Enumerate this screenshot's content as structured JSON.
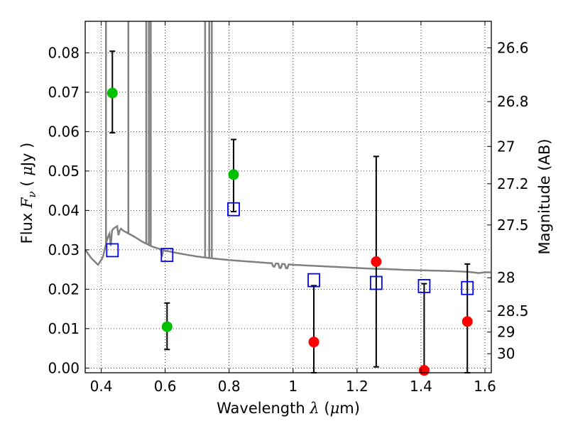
{
  "chart_data": {
    "type": "scatter",
    "xlabel_text": "Wavelength",
    "xlabel_symbol": "λ",
    "xlabel_unit_open": "(",
    "xlabel_unit_mu": "μ",
    "xlabel_unit_rest": "m)",
    "ylabel_text": "Flux",
    "ylabel_symbol": "F",
    "ylabel_sub": "ν",
    "ylabel_unit_open": "(",
    "ylabel_unit_mu": "μ",
    "ylabel_unit_rest": "Jy )",
    "y2label": "Magnitude (AB)",
    "xlim": [
      0.35,
      1.62
    ],
    "ylim": [
      -0.0012,
      0.088
    ],
    "grid": true,
    "x_ticks": [
      {
        "value": 0.4,
        "label": "0.4"
      },
      {
        "value": 0.6,
        "label": "0.6"
      },
      {
        "value": 0.8,
        "label": "0.8"
      },
      {
        "value": 1.0,
        "label": "1"
      },
      {
        "value": 1.2,
        "label": "1.2"
      },
      {
        "value": 1.4,
        "label": "1.4"
      },
      {
        "value": 1.6,
        "label": "1.6"
      }
    ],
    "y_ticks": [
      {
        "value": 0.0,
        "label": "0.00"
      },
      {
        "value": 0.01,
        "label": "0.01"
      },
      {
        "value": 0.02,
        "label": "0.02"
      },
      {
        "value": 0.03,
        "label": "0.03"
      },
      {
        "value": 0.04,
        "label": "0.04"
      },
      {
        "value": 0.05,
        "label": "0.05"
      },
      {
        "value": 0.06,
        "label": "0.06"
      },
      {
        "value": 0.07,
        "label": "0.07"
      },
      {
        "value": 0.08,
        "label": "0.08"
      }
    ],
    "mag_ticks": [
      {
        "flux": 0.08128,
        "label": "26.6"
      },
      {
        "flux": 0.06761,
        "label": "26.8"
      },
      {
        "flux": 0.05623,
        "label": "27"
      },
      {
        "flux": 0.04677,
        "label": "27.2"
      },
      {
        "flux": 0.03631,
        "label": "27.5"
      },
      {
        "flux": 0.02291,
        "label": "28"
      },
      {
        "flux": 0.01445,
        "label": "28.5"
      },
      {
        "flux": 0.00912,
        "label": "29"
      },
      {
        "flux": 0.00363,
        "label": "30"
      }
    ],
    "series": [
      {
        "name": "green detections",
        "marker": "circle",
        "color": "#00c000",
        "points": [
          {
            "x": 0.435,
            "y": 0.0698,
            "yerr_low": 0.0597,
            "yerr_high": 0.0804
          },
          {
            "x": 0.606,
            "y": 0.0105,
            "yerr_low": 0.0047,
            "yerr_high": 0.0165
          },
          {
            "x": 0.814,
            "y": 0.0491,
            "yerr_low": 0.0397,
            "yerr_high": 0.058
          }
        ]
      },
      {
        "name": "red points",
        "marker": "circle",
        "color": "#ff0000",
        "points": [
          {
            "x": 1.065,
            "y": 0.0066,
            "yerr_low": -0.0012,
            "yerr_high": 0.0209
          },
          {
            "x": 1.26,
            "y": 0.027,
            "yerr_low": 0.0003,
            "yerr_high": 0.0537
          },
          {
            "x": 1.41,
            "y": -0.0006,
            "yerr_low": -0.0012,
            "yerr_high": 0.0214
          },
          {
            "x": 1.545,
            "y": 0.0118,
            "yerr_low": -0.0012,
            "yerr_high": 0.0264
          }
        ]
      },
      {
        "name": "model photometry",
        "marker": "open-square",
        "color": "#0000ff",
        "points": [
          {
            "x": 0.435,
            "y": 0.0299
          },
          {
            "x": 0.606,
            "y": 0.0287
          },
          {
            "x": 0.814,
            "y": 0.0403
          },
          {
            "x": 1.065,
            "y": 0.0223
          },
          {
            "x": 1.26,
            "y": 0.0216
          },
          {
            "x": 1.41,
            "y": 0.0208
          },
          {
            "x": 1.545,
            "y": 0.0203
          }
        ]
      }
    ],
    "spectrum": {
      "name": "model spectrum",
      "color": "#808080",
      "x": [
        0.35,
        0.37,
        0.39,
        0.405,
        0.415,
        0.42,
        0.425,
        0.43,
        0.44,
        0.45,
        0.46,
        0.47,
        0.5,
        0.53,
        0.56,
        0.6,
        0.65,
        0.7,
        0.75,
        0.8,
        0.85,
        0.9,
        0.95,
        1.0,
        1.05,
        1.1,
        1.15,
        1.2,
        1.25,
        1.3,
        1.35,
        1.4,
        1.45,
        1.5,
        1.55,
        1.58,
        1.6,
        1.62
      ],
      "y": [
        0.03,
        0.0278,
        0.0262,
        0.028,
        0.0315,
        0.033,
        0.034,
        0.0345,
        0.0355,
        0.036,
        0.0355,
        0.0348,
        0.0335,
        0.032,
        0.0308,
        0.0298,
        0.029,
        0.0283,
        0.0278,
        0.0274,
        0.0271,
        0.0268,
        0.0265,
        0.0262,
        0.026,
        0.0258,
        0.0256,
        0.0254,
        0.0252,
        0.0251,
        0.0249,
        0.0248,
        0.0247,
        0.0246,
        0.0244,
        0.0241,
        0.0243,
        0.0243
      ]
    },
    "emission_lines": [
      {
        "x": 0.415,
        "top": 0.088
      },
      {
        "x": 0.485,
        "top": 0.088
      },
      {
        "x": 0.541,
        "top": 0.088
      },
      {
        "x": 0.549,
        "top": 0.088
      },
      {
        "x": 0.555,
        "top": 0.088
      },
      {
        "x": 0.725,
        "top": 0.088
      },
      {
        "x": 0.738,
        "top": 0.088
      },
      {
        "x": 0.746,
        "top": 0.088
      }
    ],
    "absorption_features": [
      {
        "x": 0.43,
        "depth": 0.0035
      },
      {
        "x": 0.455,
        "depth": 0.0028
      },
      {
        "x": 0.59,
        "depth": 0.0018
      },
      {
        "x": 0.94,
        "depth": 0.0016
      },
      {
        "x": 0.96,
        "depth": 0.0021
      },
      {
        "x": 0.98,
        "depth": 0.002
      }
    ]
  }
}
